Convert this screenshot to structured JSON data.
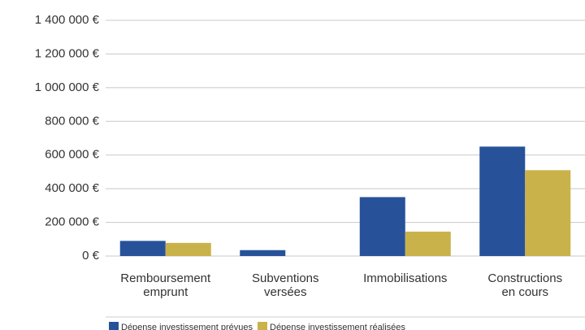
{
  "chart_data": {
    "type": "bar",
    "categories": [
      "Remboursement emprunt",
      "Subventions versées",
      "Immobilisations",
      "Constructions en cours"
    ],
    "series": [
      {
        "name": "Dépense investissement prévues",
        "color": "#27529a",
        "values": [
          90000,
          35000,
          350000,
          650000
        ]
      },
      {
        "name": "Dépense investissement réalisées",
        "color": "#c9b24a",
        "values": [
          78000,
          0,
          145000,
          510000
        ]
      }
    ],
    "ylim": [
      0,
      1400000
    ],
    "yticks": [
      {
        "value": 0,
        "label": "0 €"
      },
      {
        "value": 200000,
        "label": "200 000 €"
      },
      {
        "value": 400000,
        "label": "400 000 €"
      },
      {
        "value": 600000,
        "label": "600 000 €"
      },
      {
        "value": 800000,
        "label": "800 000 €"
      },
      {
        "value": 1000000,
        "label": "1 000 000 €"
      },
      {
        "value": 1200000,
        "label": "1 200 000 €"
      },
      {
        "value": 1400000,
        "label": "1 400 000 €"
      }
    ],
    "grid": true,
    "legend": "bottom"
  }
}
